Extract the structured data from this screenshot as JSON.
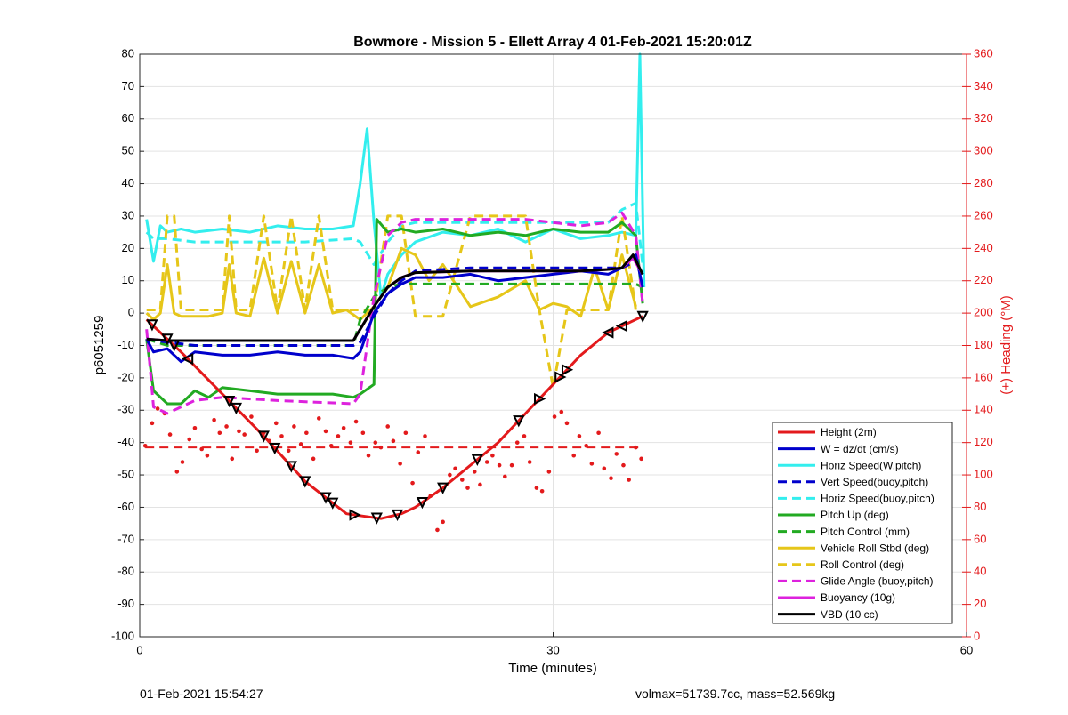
{
  "chart_data": {
    "type": "line",
    "title": "Bowmore - Mission 5 - Ellett Array 4 01-Feb-2021 15:20:01Z",
    "xlabel": "Time (minutes)",
    "ylabel": "p6051259",
    "y2label": "(+) Heading (°M)",
    "xlim": [
      0,
      60
    ],
    "ylim": [
      -100,
      80
    ],
    "y2lim": [
      0,
      360
    ],
    "xticks": [
      0,
      30,
      60
    ],
    "yticks": [
      -100,
      -90,
      -80,
      -70,
      -60,
      -50,
      -40,
      -30,
      -20,
      -10,
      0,
      10,
      20,
      30,
      40,
      50,
      60,
      70,
      80
    ],
    "y2ticks": [
      0,
      20,
      40,
      60,
      80,
      100,
      120,
      140,
      160,
      180,
      200,
      220,
      240,
      260,
      280,
      300,
      320,
      340,
      360
    ],
    "grid": true,
    "legend_position": "bottom-right",
    "colors": {
      "red": "#e31a1c",
      "blue": "#0000cc",
      "cyan": "#33eeee",
      "green": "#22aa22",
      "gold": "#e6c619",
      "magenta": "#dd22dd",
      "black": "#000000"
    },
    "series": [
      {
        "name": "Height (2m)",
        "color": "red",
        "dash": false,
        "x": [
          0.5,
          3,
          6,
          9,
          12,
          15,
          17.5,
          19,
          20,
          22,
          24,
          26,
          28,
          30,
          32,
          34,
          36.5
        ],
        "y": [
          -2,
          -12,
          -25,
          -38,
          -52,
          -62,
          -63.5,
          -62,
          -60,
          -54,
          -47,
          -40,
          -31,
          -22,
          -13,
          -6,
          -1
        ]
      },
      {
        "name": "W = dz/dt (cm/s)",
        "color": "blue",
        "dash": false,
        "x": [
          0.5,
          1,
          2,
          3,
          4,
          6,
          8,
          10,
          12,
          14,
          15.5,
          16,
          17,
          18,
          19,
          20,
          22,
          24,
          26,
          28,
          30,
          32,
          34,
          35,
          36,
          36.5
        ],
        "y": [
          -8,
          -12,
          -11,
          -15,
          -12,
          -13,
          -13,
          -12,
          -13,
          -13,
          -14,
          -12,
          0,
          6,
          9,
          11,
          11,
          12,
          10,
          11,
          12,
          13,
          12,
          14,
          18,
          8
        ]
      },
      {
        "name": "Horiz Speed(W,pitch)",
        "color": "cyan",
        "dash": false,
        "x": [
          0.5,
          1,
          1.5,
          2,
          3,
          4,
          6,
          8,
          10,
          12,
          14,
          15.5,
          16,
          16.5,
          17,
          17.5,
          18,
          19,
          20,
          22,
          24,
          26,
          28,
          30,
          32,
          34,
          35,
          36,
          36.3,
          36.6
        ],
        "y": [
          29,
          16,
          27,
          25,
          26,
          25,
          26,
          25,
          27,
          26,
          26,
          27,
          40,
          57,
          28,
          5,
          12,
          18,
          22,
          25,
          24,
          26,
          22,
          26,
          23,
          24,
          25,
          24,
          80,
          8
        ]
      },
      {
        "name": "Vert Speed(buoy,pitch)",
        "color": "blue",
        "dash": true,
        "x": [
          0.5,
          2,
          4,
          8,
          12,
          15.5,
          16,
          17,
          18,
          19,
          20,
          24,
          28,
          32,
          34,
          35,
          36,
          36.5
        ],
        "y": [
          -8,
          -9,
          -10,
          -10,
          -10,
          -10,
          -9,
          -1,
          6,
          10,
          13,
          14,
          14,
          14,
          14,
          14,
          16,
          12
        ]
      },
      {
        "name": "Horiz Speed(buoy,pitch)",
        "color": "cyan",
        "dash": true,
        "x": [
          0.5,
          1,
          2,
          4,
          8,
          12,
          15.5,
          16,
          17,
          18,
          19,
          20,
          24,
          28,
          32,
          34,
          35,
          36,
          36.5
        ],
        "y": [
          25,
          23,
          23,
          22,
          22,
          22,
          23,
          22,
          15,
          22,
          27,
          28,
          28,
          28,
          28,
          28,
          32,
          34,
          15
        ]
      },
      {
        "name": "Pitch Up (deg)",
        "color": "green",
        "dash": false,
        "x": [
          0.5,
          1,
          2,
          3,
          4,
          5,
          6,
          8,
          10,
          12,
          14,
          15.5,
          16,
          17,
          17.2,
          18,
          19,
          20,
          22,
          24,
          26,
          28,
          30,
          32,
          34,
          35,
          36,
          36.5
        ],
        "y": [
          -8,
          -24,
          -28,
          -28,
          -24,
          -26,
          -23,
          -24,
          -25,
          -25,
          -25,
          -26,
          -25,
          -22,
          29,
          25,
          26,
          25,
          26,
          24,
          25,
          24,
          26,
          25,
          25,
          28,
          24,
          3
        ]
      },
      {
        "name": "Pitch Control (mm)",
        "color": "green",
        "dash": true,
        "x": [
          0.5,
          2,
          6,
          10,
          15.5,
          16,
          17,
          18,
          19,
          20,
          24,
          28,
          32,
          36,
          36.5
        ],
        "y": [
          -8,
          -10,
          -10,
          -10,
          -10,
          -2,
          5,
          8,
          9,
          9,
          9,
          9,
          9,
          9,
          8
        ]
      },
      {
        "name": "Vehicle Roll Stbd (deg)",
        "color": "gold",
        "dash": false,
        "x": [
          0.5,
          1,
          1.5,
          2,
          2.5,
          3,
          4,
          5,
          6,
          6.5,
          7,
          8,
          9,
          10,
          11,
          12,
          13,
          14,
          15,
          16,
          17,
          18,
          19,
          20,
          21,
          22,
          24,
          26,
          28,
          29,
          30,
          31,
          32,
          33,
          34,
          35,
          36
        ],
        "y": [
          0,
          -2,
          0,
          15,
          0,
          -1,
          -1,
          -1,
          0,
          15,
          0,
          -1,
          17,
          0,
          16,
          0,
          15,
          0,
          1,
          -2,
          2,
          8,
          20,
          18,
          10,
          15,
          2,
          5,
          10,
          1,
          3,
          2,
          -1,
          14,
          1,
          18,
          2
        ]
      },
      {
        "name": "Roll Control (deg)",
        "color": "gold",
        "dash": true,
        "x": [
          0.5,
          1.5,
          2,
          2.5,
          3,
          4,
          6,
          6.5,
          7,
          8,
          9,
          10,
          11,
          12,
          13,
          14,
          15,
          16,
          17,
          18,
          19,
          20,
          22,
          24,
          26,
          28,
          29,
          30,
          31,
          32,
          34,
          35,
          36
        ],
        "y": [
          1,
          1,
          30,
          30,
          1,
          1,
          1,
          30,
          1,
          1,
          30,
          1,
          30,
          1,
          30,
          1,
          1,
          1,
          1,
          30,
          30,
          -1,
          -1,
          30,
          30,
          30,
          1,
          -23,
          1,
          1,
          1,
          30,
          1
        ]
      },
      {
        "name": "Glide Angle (buoy,pitch)",
        "color": "magenta",
        "dash": true,
        "x": [
          0.5,
          1,
          2,
          3,
          4,
          6,
          10,
          15.5,
          16,
          17,
          18,
          19,
          20,
          22,
          24,
          28,
          32,
          34,
          35,
          36,
          36.5
        ],
        "y": [
          -5,
          -29,
          -31,
          -29,
          -27,
          -26,
          -27,
          -28,
          -25,
          5,
          24,
          28,
          29,
          29,
          29,
          29,
          27,
          28,
          31,
          24,
          3
        ]
      },
      {
        "name": "Buoyancy (10g)",
        "color": "magenta",
        "dash": false,
        "x": [
          0.5,
          2,
          6,
          10,
          14,
          15.5,
          17,
          18,
          19,
          20,
          24,
          28,
          32,
          34,
          35,
          35.8,
          36.5
        ],
        "y": [
          -8,
          -8.5,
          -8.5,
          -8.5,
          -8.5,
          -8.5,
          2,
          8,
          11,
          12.5,
          13,
          13,
          13,
          13.5,
          14,
          17,
          12
        ]
      },
      {
        "name": "VBD (10 cc)",
        "color": "black",
        "dash": false,
        "x": [
          0.5,
          2,
          6,
          10,
          14,
          15.5,
          17,
          18,
          19,
          20,
          24,
          28,
          32,
          34,
          35,
          35.8,
          36.5
        ],
        "y": [
          -8,
          -8.5,
          -8.5,
          -8.5,
          -8.5,
          -8.5,
          2,
          8,
          11,
          12.5,
          13,
          13,
          13,
          13.5,
          14,
          18,
          12
        ]
      }
    ],
    "heading": {
      "target": 117,
      "x": [
        0.4,
        0.9,
        1.3,
        1.8,
        2.2,
        2.7,
        3.1,
        3.6,
        4.0,
        4.5,
        4.9,
        5.4,
        5.8,
        6.3,
        6.7,
        7.2,
        7.6,
        8.1,
        8.5,
        9.0,
        9.4,
        9.9,
        10.3,
        10.8,
        11.2,
        11.7,
        12.1,
        12.6,
        13.0,
        13.5,
        13.9,
        14.4,
        14.8,
        15.3,
        15.7,
        16.2,
        16.6,
        17.1,
        17.5,
        18.0,
        18.4,
        18.9,
        19.3,
        19.8,
        20.2,
        20.7,
        21.1,
        21.6,
        22.0,
        22.5,
        22.9,
        23.4,
        23.8,
        24.3,
        24.7,
        25.2,
        25.6,
        26.1,
        26.5,
        27.0,
        27.4,
        27.9,
        28.3,
        28.8,
        29.2,
        29.7,
        30.1,
        30.6,
        31.0,
        31.5,
        31.9,
        32.4,
        32.8,
        33.3,
        33.7,
        34.2,
        34.6,
        35.1,
        35.5,
        36.0,
        36.4
      ],
      "y": [
        118,
        132,
        141,
        138,
        125,
        102,
        108,
        122,
        129,
        116,
        112,
        134,
        126,
        130,
        110,
        127,
        125,
        136,
        115,
        126,
        121,
        132,
        124,
        115,
        130,
        119,
        126,
        110,
        135,
        127,
        118,
        124,
        129,
        120,
        133,
        126,
        112,
        120,
        117,
        130,
        121,
        107,
        126,
        95,
        114,
        124,
        87,
        66,
        71,
        100,
        104,
        97,
        92,
        102,
        94,
        108,
        112,
        106,
        99,
        106,
        120,
        124,
        108,
        92,
        90,
        102,
        136,
        139,
        132,
        112,
        124,
        118,
        107,
        126,
        104,
        98,
        113,
        106,
        97,
        117,
        110
      ]
    },
    "legend": [
      "Height (2m)",
      "W = dz/dt (cm/s)",
      "Horiz Speed(W,pitch)",
      "Vert Speed(buoy,pitch)",
      "Horiz Speed(buoy,pitch)",
      "Pitch Up (deg)",
      "Pitch Control (mm)",
      "Vehicle Roll Stbd (deg)",
      "Roll Control (deg)",
      "Glide Angle (buoy,pitch)",
      "Buoyancy (10g)",
      "VBD (10 cc)"
    ]
  },
  "footer": {
    "left": "01-Feb-2021 15:54:27",
    "right": "volmax=51739.7cc, mass=52.569kg"
  }
}
